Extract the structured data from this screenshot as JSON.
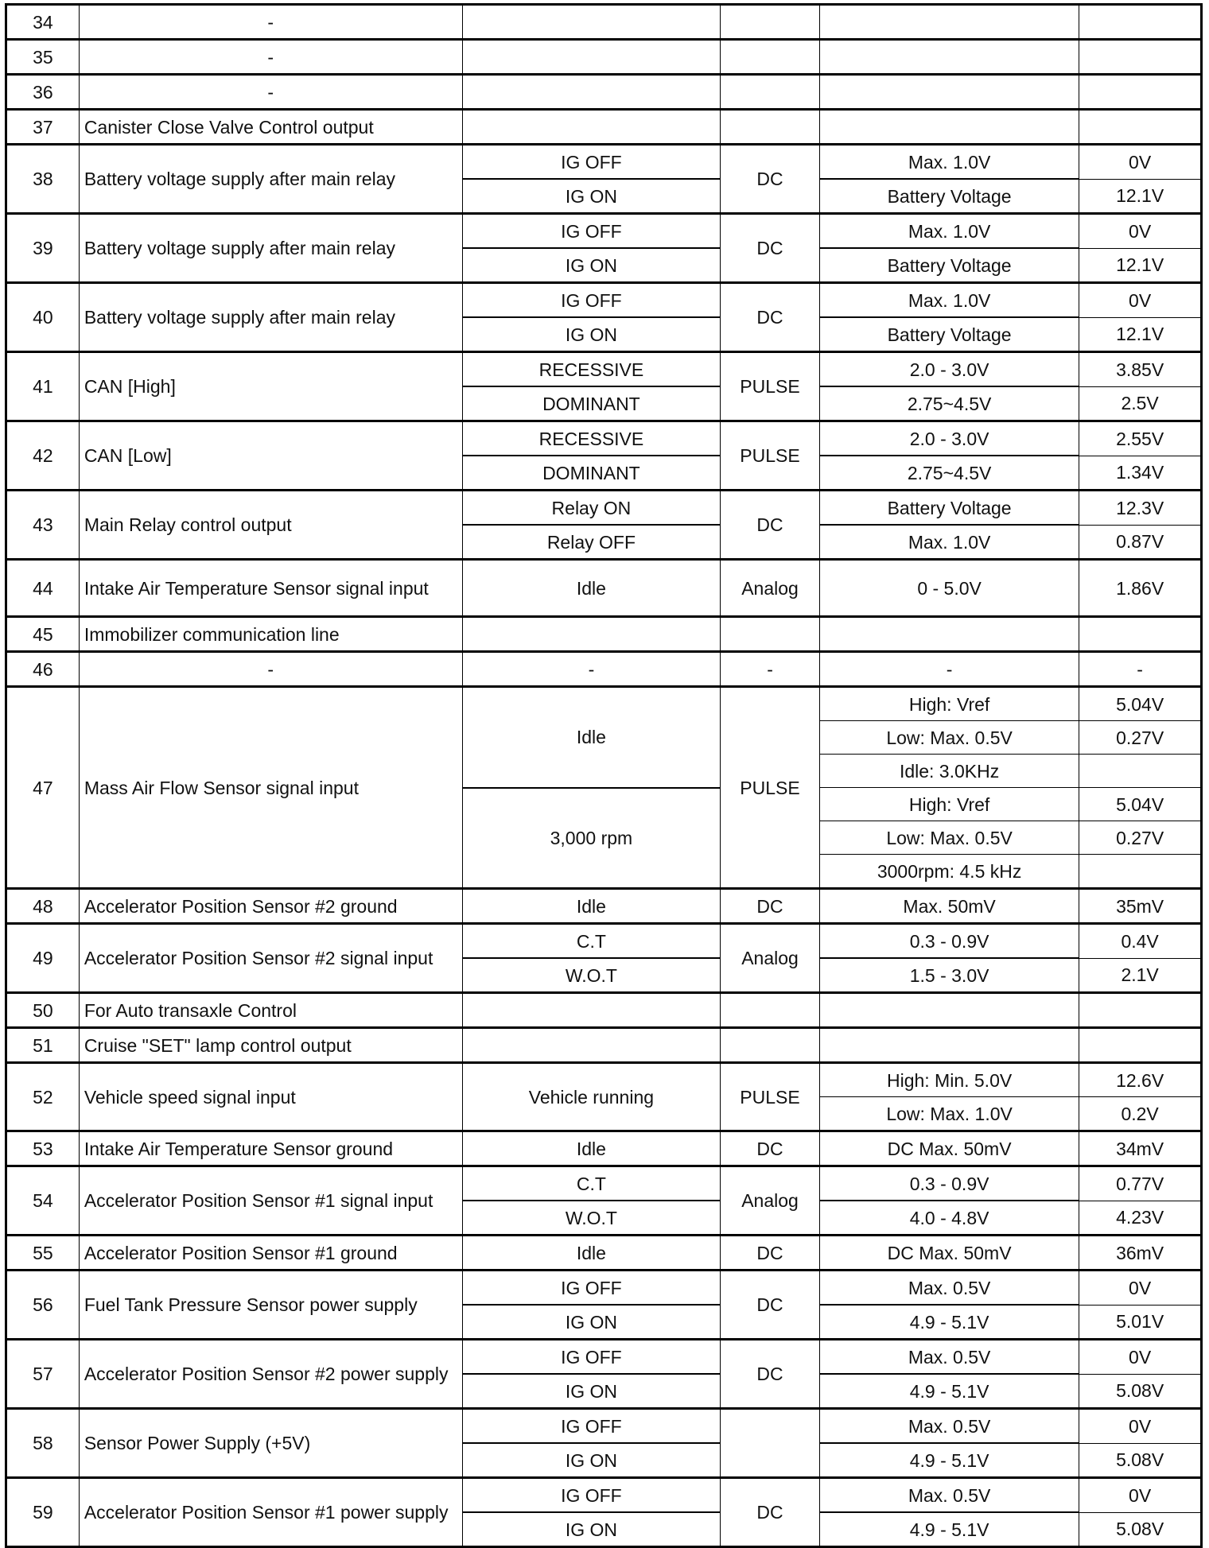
{
  "rows": [
    {
      "pin": "34",
      "desc": "-",
      "desc_center": true,
      "conds": [
        {
          "label": "",
          "span": 1
        }
      ],
      "type": "",
      "ranges": [
        ""
      ],
      "values": [
        ""
      ]
    },
    {
      "pin": "35",
      "desc": "-",
      "desc_center": true,
      "conds": [
        {
          "label": "",
          "span": 1
        }
      ],
      "type": "",
      "ranges": [
        ""
      ],
      "values": [
        ""
      ]
    },
    {
      "pin": "36",
      "desc": "-",
      "desc_center": true,
      "conds": [
        {
          "label": "",
          "span": 1
        }
      ],
      "type": "",
      "ranges": [
        ""
      ],
      "values": [
        ""
      ]
    },
    {
      "pin": "37",
      "desc": "Canister Close Valve Control output",
      "conds": [
        {
          "label": "",
          "span": 1
        }
      ],
      "type": "",
      "ranges": [
        ""
      ],
      "values": [
        ""
      ]
    },
    {
      "pin": "38",
      "desc": "Battery voltage supply after main relay",
      "conds": [
        {
          "label": "IG OFF",
          "span": 1
        },
        {
          "label": "IG ON",
          "span": 1
        }
      ],
      "type": "DC",
      "ranges": [
        "Max. 1.0V",
        "Battery Voltage"
      ],
      "values": [
        "0V",
        "12.1V"
      ]
    },
    {
      "pin": "39",
      "desc": "Battery voltage supply after main relay",
      "conds": [
        {
          "label": "IG OFF",
          "span": 1
        },
        {
          "label": "IG ON",
          "span": 1
        }
      ],
      "type": "DC",
      "ranges": [
        "Max. 1.0V",
        "Battery Voltage"
      ],
      "values": [
        "0V",
        "12.1V"
      ]
    },
    {
      "pin": "40",
      "desc": "Battery voltage supply after main relay",
      "conds": [
        {
          "label": "IG OFF",
          "span": 1
        },
        {
          "label": "IG ON",
          "span": 1
        }
      ],
      "type": "DC",
      "ranges": [
        "Max. 1.0V",
        "Battery Voltage"
      ],
      "values": [
        "0V",
        "12.1V"
      ]
    },
    {
      "pin": "41",
      "desc": "CAN [High]",
      "conds": [
        {
          "label": "RECESSIVE",
          "span": 1
        },
        {
          "label": "DOMINANT",
          "span": 1
        }
      ],
      "type": "PULSE",
      "ranges": [
        "2.0 - 3.0V",
        "2.75~4.5V"
      ],
      "values": [
        "3.85V",
        "2.5V"
      ]
    },
    {
      "pin": "42",
      "desc": "CAN [Low]",
      "conds": [
        {
          "label": "RECESSIVE",
          "span": 1
        },
        {
          "label": "DOMINANT",
          "span": 1
        }
      ],
      "type": "PULSE",
      "ranges": [
        "2.0 - 3.0V",
        "2.75~4.5V"
      ],
      "values": [
        "2.55V",
        "1.34V"
      ]
    },
    {
      "pin": "43",
      "desc": "Main Relay control output",
      "conds": [
        {
          "label": "Relay ON",
          "span": 1
        },
        {
          "label": "Relay OFF",
          "span": 1
        }
      ],
      "type": "DC",
      "ranges": [
        "Battery Voltage",
        "Max. 1.0V"
      ],
      "values": [
        "12.3V",
        "0.87V"
      ]
    },
    {
      "pin": "44",
      "desc": "Intake Air Temperature Sensor signal input",
      "tall": true,
      "conds": [
        {
          "label": "Idle",
          "span": 1
        }
      ],
      "type": "Analog",
      "ranges": [
        "0 - 5.0V"
      ],
      "values": [
        "1.86V"
      ]
    },
    {
      "pin": "45",
      "desc": "Immobilizer communication line",
      "conds": [
        {
          "label": "",
          "span": 1
        }
      ],
      "type": "",
      "ranges": [
        ""
      ],
      "values": [
        ""
      ]
    },
    {
      "pin": "46",
      "desc": "-",
      "desc_center": true,
      "conds": [
        {
          "label": "-",
          "span": 1
        }
      ],
      "type": "-",
      "ranges": [
        "-"
      ],
      "values": [
        "-"
      ]
    },
    {
      "pin": "47",
      "desc": "Mass Air Flow Sensor signal input",
      "conds": [
        {
          "label": "Idle",
          "span": 3
        },
        {
          "label": "3,000 rpm",
          "span": 3
        }
      ],
      "type": "PULSE",
      "ranges": [
        "High: Vref",
        "Low: Max. 0.5V",
        "Idle: 3.0KHz",
        "High: Vref",
        "Low: Max. 0.5V",
        "3000rpm: 4.5 kHz"
      ],
      "values": [
        "5.04V",
        "0.27V",
        "",
        "5.04V",
        "0.27V",
        ""
      ]
    },
    {
      "pin": "48",
      "desc": "Accelerator Position Sensor #2 ground",
      "conds": [
        {
          "label": "Idle",
          "span": 1
        }
      ],
      "type": "DC",
      "ranges": [
        "Max. 50mV"
      ],
      "values": [
        "35mV"
      ]
    },
    {
      "pin": "49",
      "desc": "Accelerator Position Sensor #2 signal input",
      "conds": [
        {
          "label": "C.T",
          "span": 1
        },
        {
          "label": "W.O.T",
          "span": 1
        }
      ],
      "type": "Analog",
      "ranges": [
        "0.3 - 0.9V",
        "1.5 - 3.0V"
      ],
      "values": [
        "0.4V",
        "2.1V"
      ]
    },
    {
      "pin": "50",
      "desc": "For Auto transaxle Control",
      "conds": [
        {
          "label": "",
          "span": 1
        }
      ],
      "type": "",
      "ranges": [
        ""
      ],
      "values": [
        ""
      ]
    },
    {
      "pin": "51",
      "desc": "Cruise \"SET\" lamp control output",
      "conds": [
        {
          "label": "",
          "span": 1
        }
      ],
      "type": "",
      "ranges": [
        ""
      ],
      "values": [
        ""
      ]
    },
    {
      "pin": "52",
      "desc": "Vehicle speed signal input",
      "conds": [
        {
          "label": "Vehicle running",
          "span": 2
        }
      ],
      "type": "PULSE",
      "ranges": [
        "High: Min. 5.0V",
        "Low: Max. 1.0V"
      ],
      "values": [
        "12.6V",
        "0.2V"
      ]
    },
    {
      "pin": "53",
      "desc": "Intake Air Temperature Sensor ground",
      "conds": [
        {
          "label": "Idle",
          "span": 1
        }
      ],
      "type": "DC",
      "ranges": [
        "DC Max. 50mV"
      ],
      "values": [
        "34mV"
      ]
    },
    {
      "pin": "54",
      "desc": "Accelerator Position Sensor #1 signal input",
      "conds": [
        {
          "label": "C.T",
          "span": 1
        },
        {
          "label": "W.O.T",
          "span": 1
        }
      ],
      "type": "Analog",
      "ranges": [
        "0.3 - 0.9V",
        "4.0 - 4.8V"
      ],
      "values": [
        "0.77V",
        "4.23V"
      ]
    },
    {
      "pin": "55",
      "desc": "Accelerator Position Sensor #1 ground",
      "conds": [
        {
          "label": "Idle",
          "span": 1
        }
      ],
      "type": "DC",
      "ranges": [
        "DC Max. 50mV"
      ],
      "values": [
        "36mV"
      ]
    },
    {
      "pin": "56",
      "desc": "Fuel Tank Pressure Sensor power supply",
      "conds": [
        {
          "label": "IG OFF",
          "span": 1
        },
        {
          "label": "IG ON",
          "span": 1
        }
      ],
      "type": "DC",
      "ranges": [
        "Max. 0.5V",
        "4.9 - 5.1V"
      ],
      "values": [
        "0V",
        "5.01V"
      ]
    },
    {
      "pin": "57",
      "desc": "Accelerator Position Sensor #2 power supply",
      "conds": [
        {
          "label": "IG OFF",
          "span": 1
        },
        {
          "label": "IG ON",
          "span": 1
        }
      ],
      "type": "DC",
      "ranges": [
        "Max. 0.5V",
        "4.9 - 5.1V"
      ],
      "values": [
        "0V",
        "5.08V"
      ]
    },
    {
      "pin": "58",
      "desc": "Sensor Power Supply (+5V)",
      "conds": [
        {
          "label": "IG OFF",
          "span": 1
        },
        {
          "label": "IG ON",
          "span": 1
        }
      ],
      "type": "",
      "ranges": [
        "Max. 0.5V",
        "4.9 - 5.1V"
      ],
      "values": [
        "0V",
        "5.08V"
      ]
    },
    {
      "pin": "59",
      "desc": "Accelerator Position Sensor #1 power supply",
      "conds": [
        {
          "label": "IG OFF",
          "span": 1
        },
        {
          "label": "IG ON",
          "span": 1
        }
      ],
      "type": "DC",
      "ranges": [
        "Max. 0.5V",
        "4.9 - 5.1V"
      ],
      "values": [
        "0V",
        "5.08V"
      ]
    }
  ]
}
